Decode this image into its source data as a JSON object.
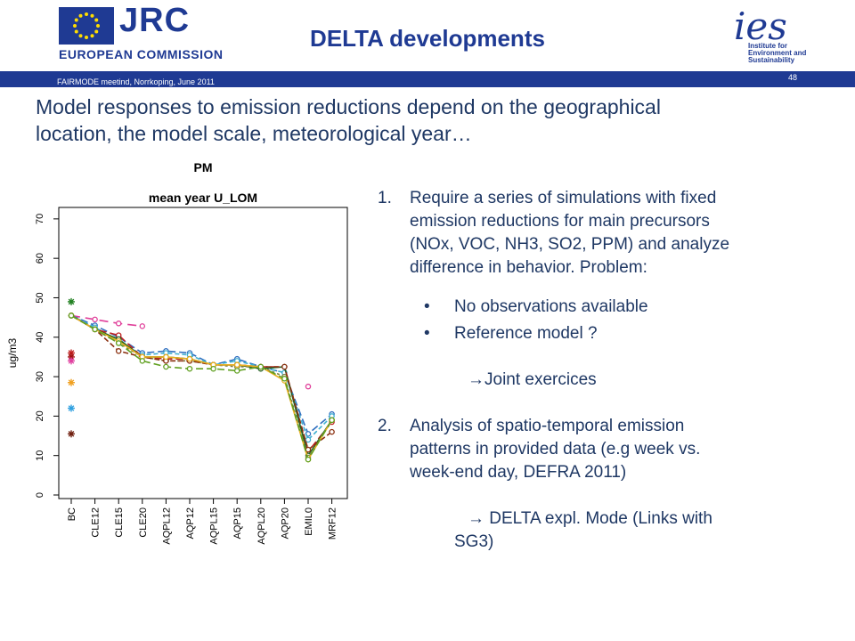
{
  "header": {
    "org": "JRC",
    "commission": "EUROPEAN COMMISSION",
    "title": "DELTA developments",
    "institute_logo": "ies",
    "institute_text": [
      "Institute for",
      "Environment and",
      "Sustainability"
    ],
    "meeting": "FAIRMODE meetind, Norrkoping, June 2011",
    "page_number": "48"
  },
  "subtitle_lines": [
    "Model responses to emission reductions depend on the geographical",
    "location, the model scale, meteorological year…"
  ],
  "right_text": {
    "item1_num": "1.",
    "item1": [
      "Require a series of simulations with fixed",
      "emission reductions for main precursors",
      "(NOx, VOC, NH3, SO2, PPM) and analyze",
      "difference in behavior. Problem:"
    ],
    "bullet_char": "•",
    "bullets": [
      "No observations available",
      "Reference model ?"
    ],
    "arrow1": "Joint exercices",
    "item2_num": "2.",
    "item2": [
      "Analysis of spatio-temporal emission",
      "patterns in provided data (e.g week vs.",
      "week-end day, DEFRA 2011)"
    ],
    "arrow2": [
      " DELTA expl. Mode (Links with",
      "SG3)"
    ],
    "arrow_glyph": "→"
  },
  "chart_data": {
    "type": "line",
    "title": "PM",
    "subtitle": "mean year U_LOM",
    "xlabel": "",
    "ylabel": "ug/m3",
    "ylim": [
      0,
      72
    ],
    "yticks": [
      0,
      10,
      20,
      30,
      40,
      50,
      60,
      70
    ],
    "categories": [
      "BC",
      "CLE12",
      "CLE15",
      "CLE20",
      "AQPL12",
      "AQP12",
      "AQPL15",
      "AQP15",
      "AQPL20",
      "AQP20",
      "EMIL0",
      "MRF12"
    ],
    "grid": false,
    "series": [
      {
        "color": "#e0409a",
        "dash": "10,6",
        "values": [
          45.5,
          44.5,
          43.5,
          42.8,
          null,
          null,
          null,
          null,
          null,
          null,
          27.5,
          null
        ]
      },
      {
        "color": "#3070c0",
        "dash": "8,4",
        "values": [
          45.5,
          43,
          40,
          36,
          36.5,
          36,
          33,
          34.5,
          32.5,
          31,
          15.5,
          20.5
        ]
      },
      {
        "color": "#40b0d0",
        "dash": "5,3",
        "values": [
          45.5,
          42.5,
          39,
          35.5,
          36,
          35.5,
          33,
          34,
          32.5,
          31,
          14,
          20
        ]
      },
      {
        "color": "#c02020",
        "dash": "8,4",
        "values": [
          45.5,
          42,
          40.5,
          35,
          34.5,
          34.5,
          33,
          33,
          32.5,
          32.5,
          11,
          18.5
        ]
      },
      {
        "color": "#206020",
        "dash": "",
        "values": [
          45.5,
          42,
          39.5,
          35,
          35,
          34.5,
          33,
          33,
          32,
          32.5,
          10,
          19
        ]
      },
      {
        "color": "#808040",
        "dash": "3,3",
        "values": [
          45.5,
          42,
          38.5,
          35,
          34,
          34,
          33,
          32.5,
          32.5,
          30,
          9.5,
          19
        ]
      },
      {
        "color": "#8b3010",
        "dash": "6,3",
        "values": [
          45.5,
          42,
          36.5,
          35,
          34,
          34,
          33,
          33,
          32.5,
          32.5,
          11.5,
          16
        ]
      },
      {
        "color": "#e8b020",
        "dash": "",
        "values": [
          45.5,
          42,
          39,
          35,
          35,
          34.5,
          33,
          33,
          32.5,
          29,
          9,
          19
        ]
      },
      {
        "color": "#60a020",
        "dash": "8,4",
        "values": [
          45.5,
          42,
          38.5,
          34,
          32.5,
          32,
          32,
          31.5,
          32.5,
          29.5,
          9,
          19
        ]
      }
    ],
    "bc_stars": [
      {
        "value": 49,
        "color": "#208020"
      },
      {
        "value": 36,
        "color": "#c02020"
      },
      {
        "value": 35,
        "color": "#a01010"
      },
      {
        "value": 34,
        "color": "#e040a0"
      },
      {
        "value": 28.5,
        "color": "#f0a020"
      },
      {
        "value": 22,
        "color": "#30a0e0"
      },
      {
        "value": 15.5,
        "color": "#702010"
      }
    ]
  }
}
